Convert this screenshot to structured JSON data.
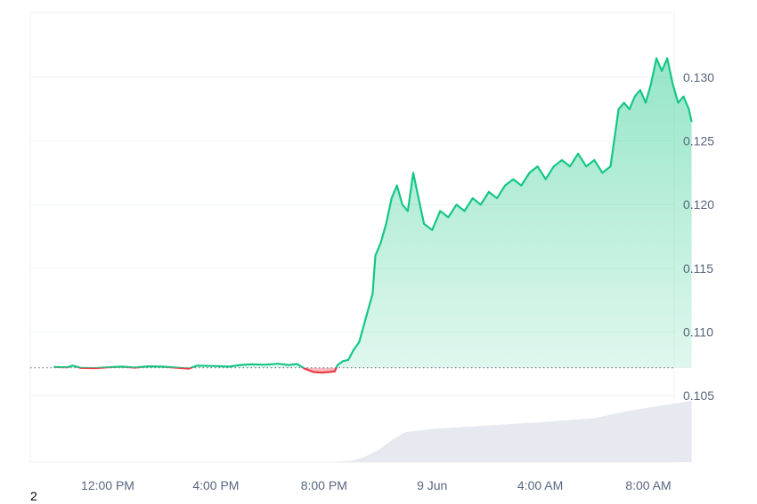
{
  "chart_data": {
    "type": "line",
    "baseline": 0.10718,
    "ylim": [
      0.1,
      0.135
    ],
    "y_ticks": [
      0.105,
      0.11,
      0.115,
      0.12,
      0.125,
      0.13
    ],
    "y_tick_labels": [
      "0.105",
      "0.110",
      "0.115",
      "0.120",
      "0.125",
      "0.130"
    ],
    "x_range_hours": [
      10,
      34.9
    ],
    "x_ticks": [
      12,
      16,
      20,
      24,
      28,
      32
    ],
    "x_tick_labels": [
      "12:00 PM",
      "4:00 PM",
      "8:00 PM",
      "9 Jun",
      "4:00 AM",
      "8:00 AM"
    ],
    "x_tick_hours_note": "hours since midnight, 8 Jun",
    "colors": {
      "up": "#16c784",
      "down": "#ea3943",
      "grid": "#eff2f5",
      "volume": "#e6e9ef",
      "text": "#58667e"
    },
    "price": [
      [
        10.0,
        0.10725
      ],
      [
        10.5,
        0.10722
      ],
      [
        10.7,
        0.10735
      ],
      [
        11.0,
        0.10718
      ],
      [
        11.5,
        0.10715
      ],
      [
        12.0,
        0.10722
      ],
      [
        12.5,
        0.10728
      ],
      [
        13.0,
        0.1072
      ],
      [
        13.5,
        0.1073
      ],
      [
        14.0,
        0.10728
      ],
      [
        14.5,
        0.1072
      ],
      [
        15.0,
        0.10712
      ],
      [
        15.3,
        0.10735
      ],
      [
        16.0,
        0.10732
      ],
      [
        16.5,
        0.10728
      ],
      [
        16.9,
        0.1074
      ],
      [
        17.3,
        0.10745
      ],
      [
        17.8,
        0.10742
      ],
      [
        18.3,
        0.1075
      ],
      [
        18.7,
        0.1074
      ],
      [
        19.0,
        0.10748
      ],
      [
        19.3,
        0.1071
      ],
      [
        19.6,
        0.10685
      ],
      [
        19.9,
        0.1068
      ],
      [
        20.2,
        0.10685
      ],
      [
        20.4,
        0.1069
      ],
      [
        20.5,
        0.1074
      ],
      [
        20.7,
        0.1077
      ],
      [
        20.9,
        0.1078
      ],
      [
        21.1,
        0.1086
      ],
      [
        21.3,
        0.1092
      ],
      [
        21.6,
        0.1115
      ],
      [
        21.8,
        0.113
      ],
      [
        21.9,
        0.116
      ],
      [
        22.1,
        0.117
      ],
      [
        22.3,
        0.1185
      ],
      [
        22.5,
        0.1205
      ],
      [
        22.7,
        0.1215
      ],
      [
        22.9,
        0.12
      ],
      [
        23.1,
        0.1195
      ],
      [
        23.3,
        0.1225
      ],
      [
        23.5,
        0.1205
      ],
      [
        23.7,
        0.1185
      ],
      [
        24.0,
        0.118
      ],
      [
        24.3,
        0.1195
      ],
      [
        24.6,
        0.119
      ],
      [
        24.9,
        0.12
      ],
      [
        25.2,
        0.1195
      ],
      [
        25.5,
        0.1205
      ],
      [
        25.8,
        0.12
      ],
      [
        26.1,
        0.121
      ],
      [
        26.4,
        0.1205
      ],
      [
        26.7,
        0.1215
      ],
      [
        27.0,
        0.122
      ],
      [
        27.3,
        0.1215
      ],
      [
        27.6,
        0.1225
      ],
      [
        27.9,
        0.123
      ],
      [
        28.2,
        0.122
      ],
      [
        28.5,
        0.123
      ],
      [
        28.8,
        0.1235
      ],
      [
        29.1,
        0.123
      ],
      [
        29.4,
        0.124
      ],
      [
        29.7,
        0.123
      ],
      [
        30.0,
        0.1235
      ],
      [
        30.3,
        0.1225
      ],
      [
        30.6,
        0.123
      ],
      [
        30.9,
        0.1275
      ],
      [
        31.1,
        0.128
      ],
      [
        31.3,
        0.1275
      ],
      [
        31.5,
        0.1285
      ],
      [
        31.7,
        0.129
      ],
      [
        31.9,
        0.128
      ],
      [
        32.1,
        0.1295
      ],
      [
        32.3,
        0.1315
      ],
      [
        32.5,
        0.1305
      ],
      [
        32.7,
        0.1315
      ],
      [
        32.9,
        0.1295
      ],
      [
        33.1,
        0.128
      ],
      [
        33.3,
        0.1285
      ],
      [
        33.5,
        0.1275
      ],
      [
        33.6,
        0.1265
      ]
    ],
    "volume_relative": [
      [
        10.0,
        0.0
      ],
      [
        20.0,
        0.0
      ],
      [
        21.0,
        0.02
      ],
      [
        21.5,
        0.08
      ],
      [
        22.0,
        0.18
      ],
      [
        22.5,
        0.33
      ],
      [
        23.0,
        0.45
      ],
      [
        24.0,
        0.5
      ],
      [
        26.0,
        0.55
      ],
      [
        28.0,
        0.6
      ],
      [
        30.0,
        0.66
      ],
      [
        31.0,
        0.75
      ],
      [
        32.0,
        0.82
      ],
      [
        33.6,
        0.92
      ]
    ]
  },
  "footer": {
    "label": "2"
  }
}
